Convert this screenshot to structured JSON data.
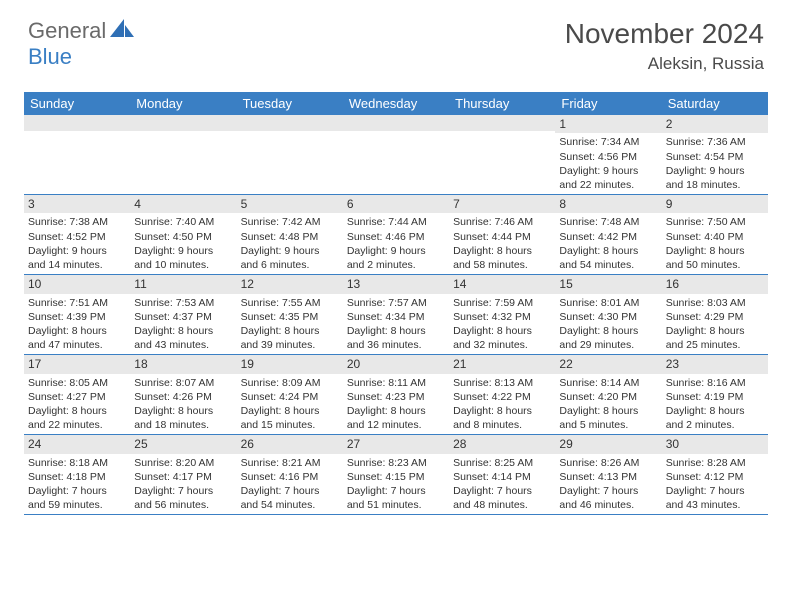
{
  "branding": {
    "name_part1": "General",
    "name_part2": "Blue",
    "logo_color": "#2f6fb5"
  },
  "header": {
    "month_title": "November 2024",
    "location": "Aleksin, Russia"
  },
  "colors": {
    "header_bg": "#3a7fc4",
    "header_text": "#ffffff",
    "daynum_bg": "#e8e8e8",
    "border": "#3a7fc4",
    "text": "#333333"
  },
  "day_names": [
    "Sunday",
    "Monday",
    "Tuesday",
    "Wednesday",
    "Thursday",
    "Friday",
    "Saturday"
  ],
  "weeks": [
    [
      {
        "n": "",
        "lines": []
      },
      {
        "n": "",
        "lines": []
      },
      {
        "n": "",
        "lines": []
      },
      {
        "n": "",
        "lines": []
      },
      {
        "n": "",
        "lines": []
      },
      {
        "n": "1",
        "lines": [
          "Sunrise: 7:34 AM",
          "Sunset: 4:56 PM",
          "Daylight: 9 hours and 22 minutes."
        ]
      },
      {
        "n": "2",
        "lines": [
          "Sunrise: 7:36 AM",
          "Sunset: 4:54 PM",
          "Daylight: 9 hours and 18 minutes."
        ]
      }
    ],
    [
      {
        "n": "3",
        "lines": [
          "Sunrise: 7:38 AM",
          "Sunset: 4:52 PM",
          "Daylight: 9 hours and 14 minutes."
        ]
      },
      {
        "n": "4",
        "lines": [
          "Sunrise: 7:40 AM",
          "Sunset: 4:50 PM",
          "Daylight: 9 hours and 10 minutes."
        ]
      },
      {
        "n": "5",
        "lines": [
          "Sunrise: 7:42 AM",
          "Sunset: 4:48 PM",
          "Daylight: 9 hours and 6 minutes."
        ]
      },
      {
        "n": "6",
        "lines": [
          "Sunrise: 7:44 AM",
          "Sunset: 4:46 PM",
          "Daylight: 9 hours and 2 minutes."
        ]
      },
      {
        "n": "7",
        "lines": [
          "Sunrise: 7:46 AM",
          "Sunset: 4:44 PM",
          "Daylight: 8 hours and 58 minutes."
        ]
      },
      {
        "n": "8",
        "lines": [
          "Sunrise: 7:48 AM",
          "Sunset: 4:42 PM",
          "Daylight: 8 hours and 54 minutes."
        ]
      },
      {
        "n": "9",
        "lines": [
          "Sunrise: 7:50 AM",
          "Sunset: 4:40 PM",
          "Daylight: 8 hours and 50 minutes."
        ]
      }
    ],
    [
      {
        "n": "10",
        "lines": [
          "Sunrise: 7:51 AM",
          "Sunset: 4:39 PM",
          "Daylight: 8 hours and 47 minutes."
        ]
      },
      {
        "n": "11",
        "lines": [
          "Sunrise: 7:53 AM",
          "Sunset: 4:37 PM",
          "Daylight: 8 hours and 43 minutes."
        ]
      },
      {
        "n": "12",
        "lines": [
          "Sunrise: 7:55 AM",
          "Sunset: 4:35 PM",
          "Daylight: 8 hours and 39 minutes."
        ]
      },
      {
        "n": "13",
        "lines": [
          "Sunrise: 7:57 AM",
          "Sunset: 4:34 PM",
          "Daylight: 8 hours and 36 minutes."
        ]
      },
      {
        "n": "14",
        "lines": [
          "Sunrise: 7:59 AM",
          "Sunset: 4:32 PM",
          "Daylight: 8 hours and 32 minutes."
        ]
      },
      {
        "n": "15",
        "lines": [
          "Sunrise: 8:01 AM",
          "Sunset: 4:30 PM",
          "Daylight: 8 hours and 29 minutes."
        ]
      },
      {
        "n": "16",
        "lines": [
          "Sunrise: 8:03 AM",
          "Sunset: 4:29 PM",
          "Daylight: 8 hours and 25 minutes."
        ]
      }
    ],
    [
      {
        "n": "17",
        "lines": [
          "Sunrise: 8:05 AM",
          "Sunset: 4:27 PM",
          "Daylight: 8 hours and 22 minutes."
        ]
      },
      {
        "n": "18",
        "lines": [
          "Sunrise: 8:07 AM",
          "Sunset: 4:26 PM",
          "Daylight: 8 hours and 18 minutes."
        ]
      },
      {
        "n": "19",
        "lines": [
          "Sunrise: 8:09 AM",
          "Sunset: 4:24 PM",
          "Daylight: 8 hours and 15 minutes."
        ]
      },
      {
        "n": "20",
        "lines": [
          "Sunrise: 8:11 AM",
          "Sunset: 4:23 PM",
          "Daylight: 8 hours and 12 minutes."
        ]
      },
      {
        "n": "21",
        "lines": [
          "Sunrise: 8:13 AM",
          "Sunset: 4:22 PM",
          "Daylight: 8 hours and 8 minutes."
        ]
      },
      {
        "n": "22",
        "lines": [
          "Sunrise: 8:14 AM",
          "Sunset: 4:20 PM",
          "Daylight: 8 hours and 5 minutes."
        ]
      },
      {
        "n": "23",
        "lines": [
          "Sunrise: 8:16 AM",
          "Sunset: 4:19 PM",
          "Daylight: 8 hours and 2 minutes."
        ]
      }
    ],
    [
      {
        "n": "24",
        "lines": [
          "Sunrise: 8:18 AM",
          "Sunset: 4:18 PM",
          "Daylight: 7 hours and 59 minutes."
        ]
      },
      {
        "n": "25",
        "lines": [
          "Sunrise: 8:20 AM",
          "Sunset: 4:17 PM",
          "Daylight: 7 hours and 56 minutes."
        ]
      },
      {
        "n": "26",
        "lines": [
          "Sunrise: 8:21 AM",
          "Sunset: 4:16 PM",
          "Daylight: 7 hours and 54 minutes."
        ]
      },
      {
        "n": "27",
        "lines": [
          "Sunrise: 8:23 AM",
          "Sunset: 4:15 PM",
          "Daylight: 7 hours and 51 minutes."
        ]
      },
      {
        "n": "28",
        "lines": [
          "Sunrise: 8:25 AM",
          "Sunset: 4:14 PM",
          "Daylight: 7 hours and 48 minutes."
        ]
      },
      {
        "n": "29",
        "lines": [
          "Sunrise: 8:26 AM",
          "Sunset: 4:13 PM",
          "Daylight: 7 hours and 46 minutes."
        ]
      },
      {
        "n": "30",
        "lines": [
          "Sunrise: 8:28 AM",
          "Sunset: 4:12 PM",
          "Daylight: 7 hours and 43 minutes."
        ]
      }
    ]
  ]
}
